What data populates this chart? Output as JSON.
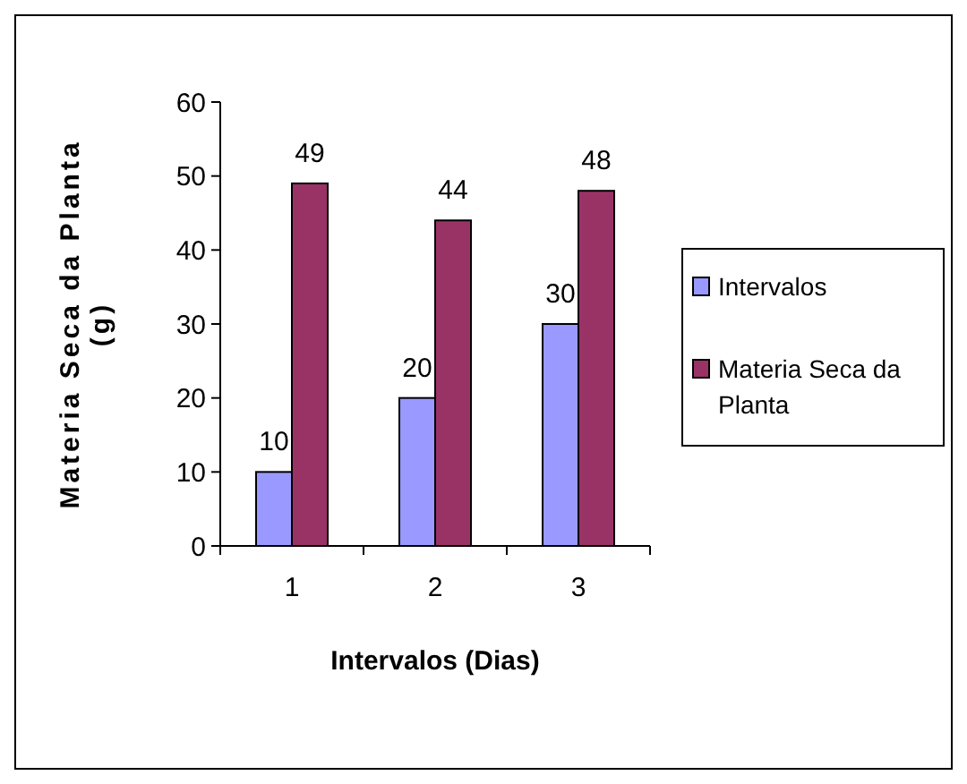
{
  "chart_data": {
    "type": "bar",
    "xlabel": "Intervalos (Dias)",
    "ylabel": "Materia Seca da Planta (g)",
    "categories": [
      "1",
      "2",
      "3"
    ],
    "series": [
      {
        "name": "Intervalos",
        "color": "#9999ff",
        "values": [
          10,
          20,
          30
        ]
      },
      {
        "name": "Materia Seca da Planta",
        "color": "#993366",
        "values": [
          49,
          44,
          48
        ]
      }
    ],
    "ylim": [
      0,
      60
    ],
    "yticks": [
      0,
      10,
      20,
      30,
      40,
      50,
      60
    ],
    "data_labels": true,
    "legend": "right",
    "grid": false
  }
}
